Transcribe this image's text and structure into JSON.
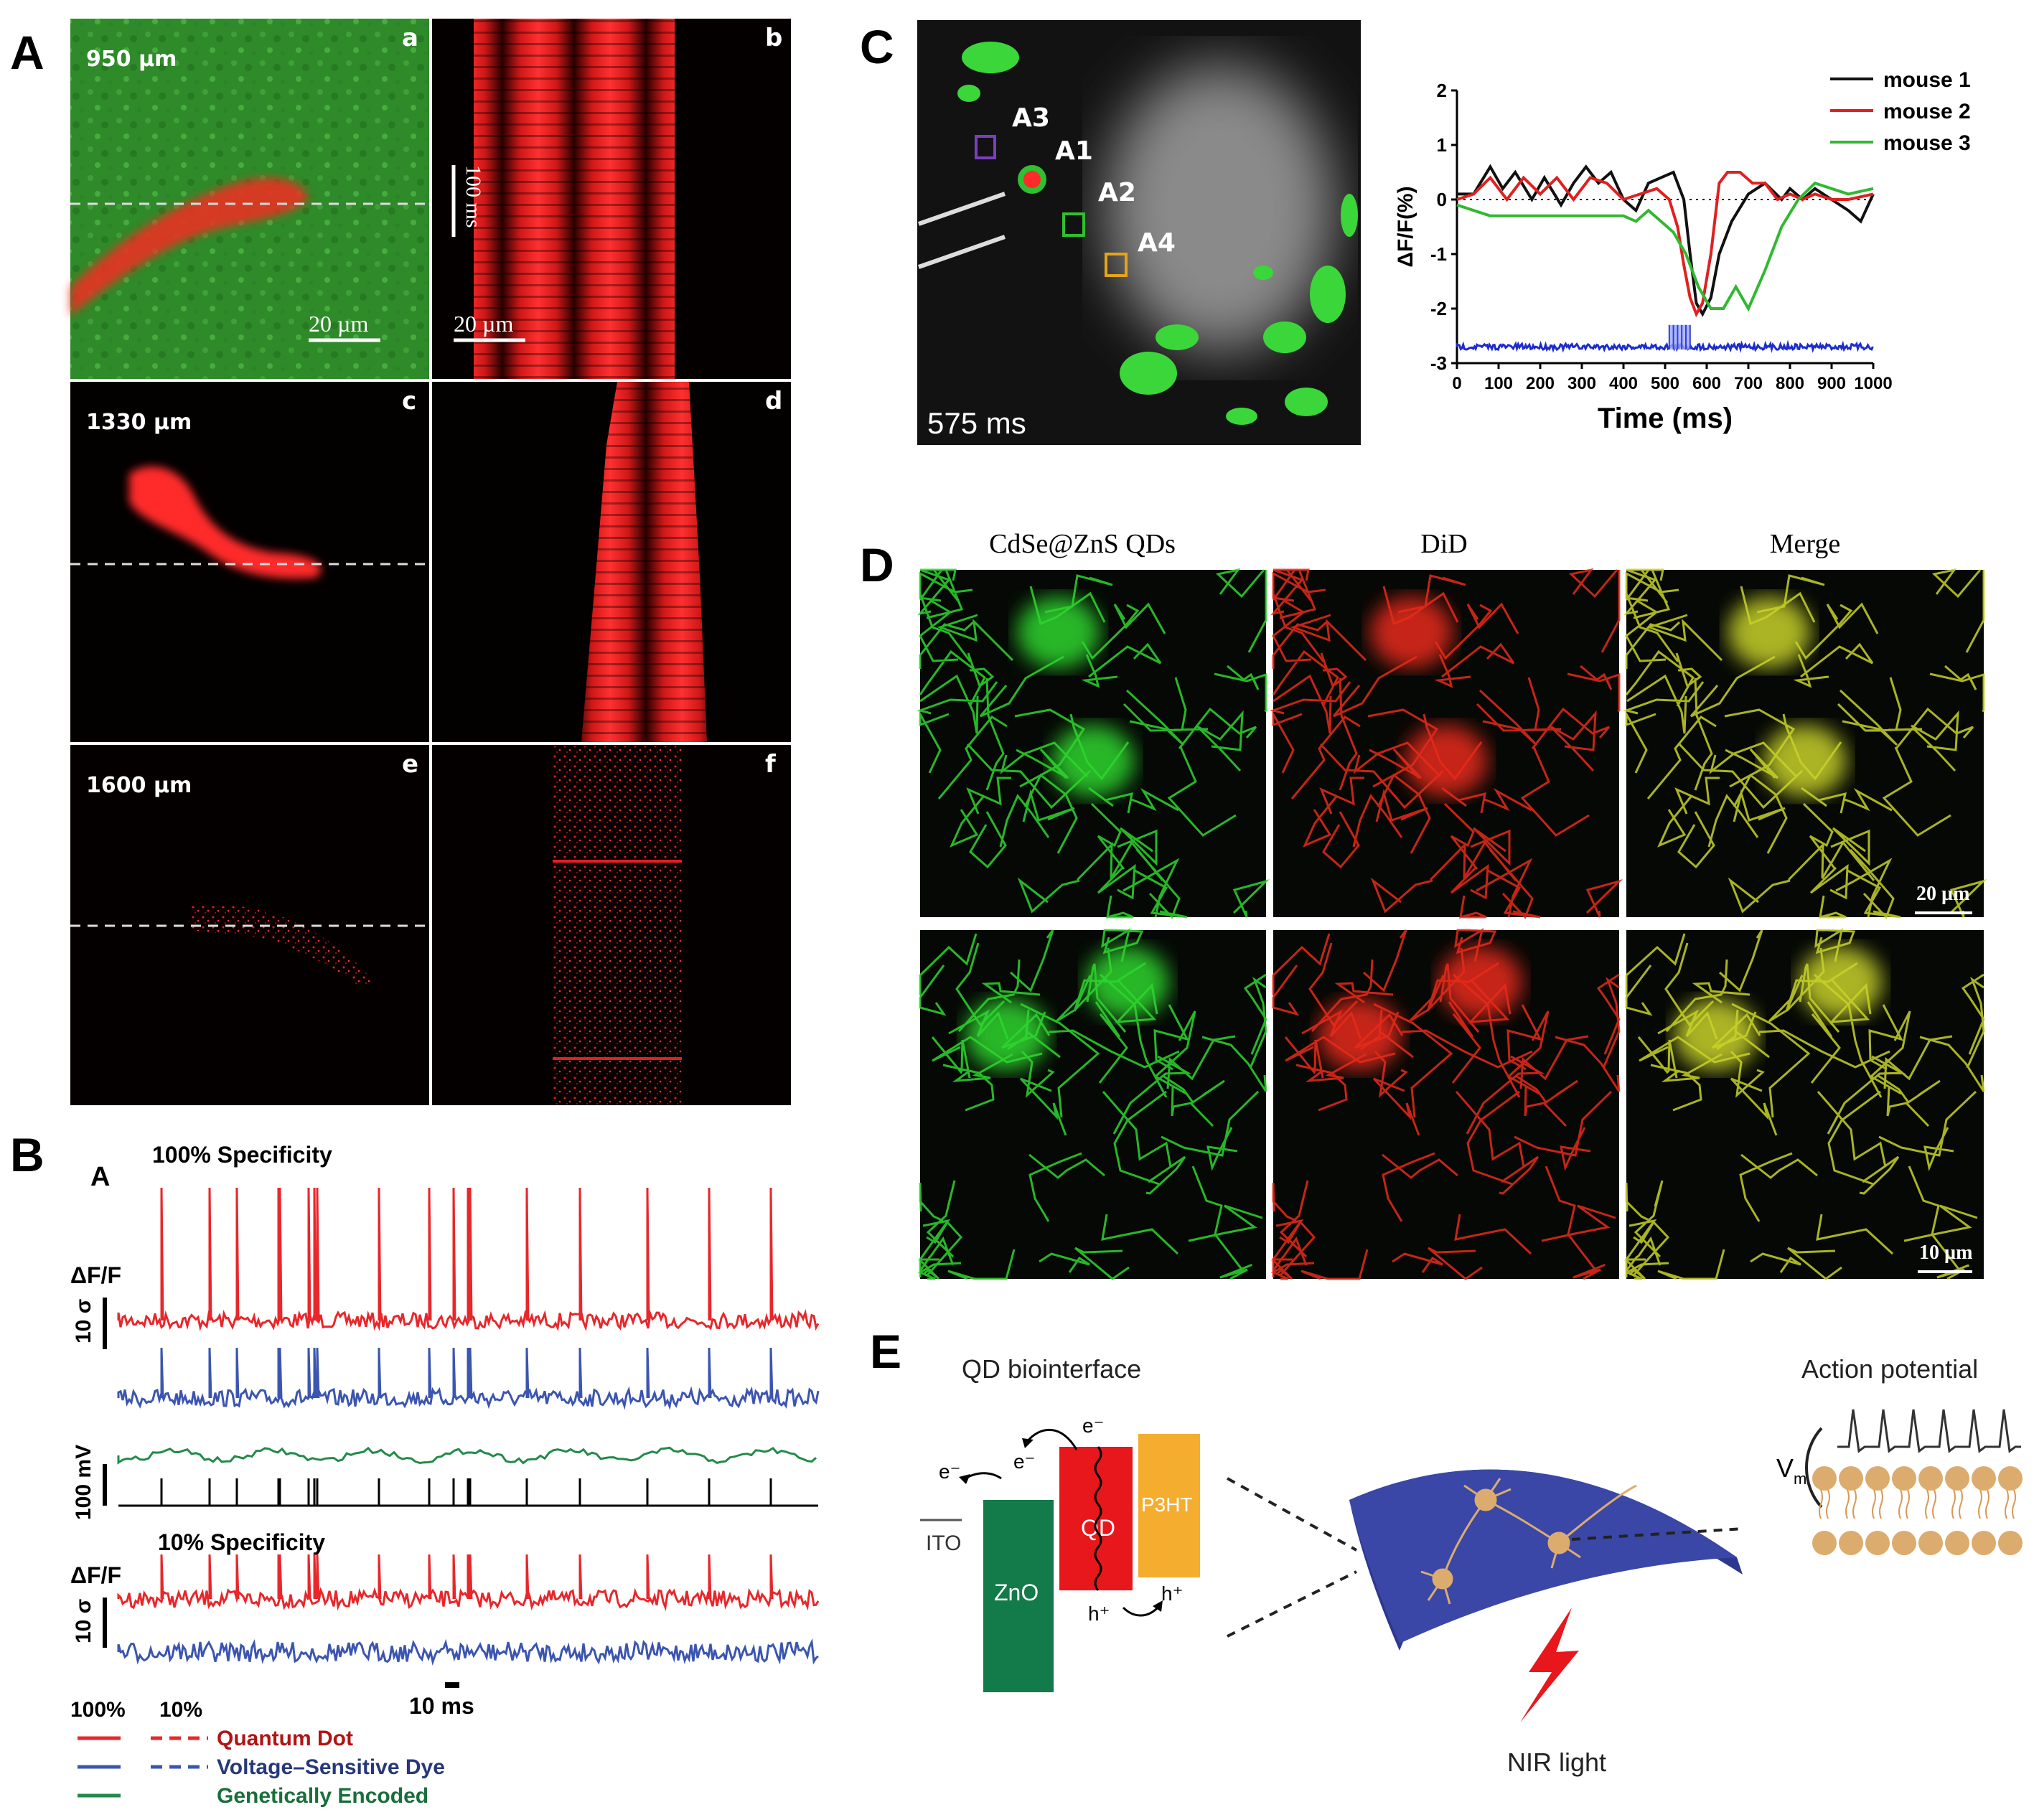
{
  "panel_labels": {
    "A": "A",
    "B": "B",
    "C": "C",
    "D": "D",
    "E": "E"
  },
  "panel_A": {
    "depths": [
      "950 µm",
      "1330 µm",
      "1600 µm"
    ],
    "sub_labels": [
      "a",
      "b",
      "c",
      "d",
      "e",
      "f"
    ],
    "scale_a": "20 µm",
    "scale_b_time": "100 ms",
    "scale_b_space": "20 µm"
  },
  "panel_B": {
    "inner_label": "A",
    "title_100": "100% Specificity",
    "title_10": "10% Specificity",
    "dff_label": "ΔF/F",
    "sigma_label": "10 σ",
    "mv_label": "100 mV",
    "time_scale": "10 ms",
    "legend_head_100": "100%",
    "legend_head_10": "10%",
    "legend": [
      {
        "label": "Quantum Dot",
        "color": "#e8272b"
      },
      {
        "label": "Voltage–Sensitive Dye",
        "color": "#3b55b0"
      },
      {
        "label": "Genetically Encoded",
        "color": "#238a4a"
      }
    ]
  },
  "panel_C": {
    "roi_labels": [
      "A3",
      "A1",
      "A2",
      "A4"
    ],
    "time_stamp": "575 ms",
    "chart_data": {
      "type": "line",
      "xlabel": "Time (ms)",
      "ylabel": "ΔF/F(%)",
      "xlim": [
        0,
        1000
      ],
      "ylim": [
        -3,
        2
      ],
      "xticks": [
        0,
        100,
        200,
        300,
        400,
        500,
        600,
        700,
        800,
        900,
        1000
      ],
      "yticks": [
        2,
        1,
        0,
        -1,
        -2,
        -3
      ],
      "legend_position": "top-right",
      "series": [
        {
          "name": "mouse 1",
          "color": "#111111",
          "x": [
            0,
            40,
            80,
            110,
            140,
            180,
            210,
            250,
            280,
            310,
            340,
            370,
            400,
            430,
            460,
            490,
            520,
            545,
            560,
            575,
            590,
            610,
            630,
            660,
            700,
            740,
            780,
            800,
            830,
            860,
            900,
            940,
            970,
            1000
          ],
          "y": [
            0.1,
            0.1,
            0.6,
            0.2,
            0.5,
            0.0,
            0.4,
            -0.1,
            0.3,
            0.6,
            0.3,
            0.5,
            0.0,
            -0.2,
            0.3,
            0.4,
            0.5,
            0.0,
            -1.0,
            -1.9,
            -2.1,
            -1.8,
            -1.0,
            -0.4,
            0.1,
            0.3,
            0.0,
            0.2,
            0.0,
            0.2,
            0.0,
            -0.2,
            -0.4,
            0.1
          ]
        },
        {
          "name": "mouse 2",
          "color": "#e02020",
          "x": [
            0,
            40,
            80,
            120,
            160,
            200,
            240,
            280,
            320,
            360,
            400,
            440,
            480,
            510,
            530,
            545,
            560,
            575,
            590,
            610,
            630,
            650,
            680,
            710,
            740,
            770,
            800,
            830,
            860,
            900,
            940,
            1000
          ],
          "y": [
            0.0,
            0.1,
            0.4,
            0.0,
            0.4,
            0.1,
            0.4,
            0.0,
            0.4,
            0.3,
            0.0,
            0.1,
            0.2,
            0.0,
            -0.5,
            -1.2,
            -1.8,
            -2.1,
            -1.9,
            -1.0,
            0.3,
            0.5,
            0.5,
            0.3,
            0.3,
            0.0,
            0.1,
            0.0,
            0.1,
            0.0,
            0.0,
            0.1
          ]
        },
        {
          "name": "mouse 3",
          "color": "#31b931",
          "x": [
            0,
            40,
            80,
            120,
            160,
            200,
            240,
            280,
            320,
            360,
            400,
            430,
            460,
            490,
            520,
            550,
            580,
            610,
            640,
            670,
            700,
            740,
            780,
            820,
            860,
            900,
            940,
            1000
          ],
          "y": [
            -0.1,
            -0.2,
            -0.3,
            -0.3,
            -0.3,
            -0.3,
            -0.3,
            -0.3,
            -0.3,
            -0.3,
            -0.3,
            -0.4,
            -0.2,
            -0.4,
            -0.6,
            -1.0,
            -1.6,
            -2.0,
            -2.0,
            -1.6,
            -2.0,
            -1.3,
            -0.5,
            0.0,
            0.3,
            0.2,
            0.1,
            0.2
          ]
        }
      ],
      "stimulus": {
        "start": 510,
        "end": 560,
        "color": "#3040d0"
      }
    }
  },
  "panel_D": {
    "col_titles": [
      "CdSe@ZnS QDs",
      "DiD",
      "Merge"
    ],
    "scale_top": "20 µm",
    "scale_bottom": "10 µm"
  },
  "panel_E": {
    "title_left": "QD biointerface",
    "title_right": "Action potential",
    "electron": "e⁻",
    "hole": "h⁺",
    "ito": "ITO",
    "zno": "ZnO",
    "qd": "QD",
    "p3ht": "P3HT",
    "vm": "V",
    "vm_sub": "m",
    "light": "NIR light",
    "colors": {
      "zno": "#137a4a",
      "qd": "#e8171c",
      "p3ht": "#f5ad2f",
      "substrate": "#3a47a6",
      "membrane": "#dcac6e"
    }
  }
}
